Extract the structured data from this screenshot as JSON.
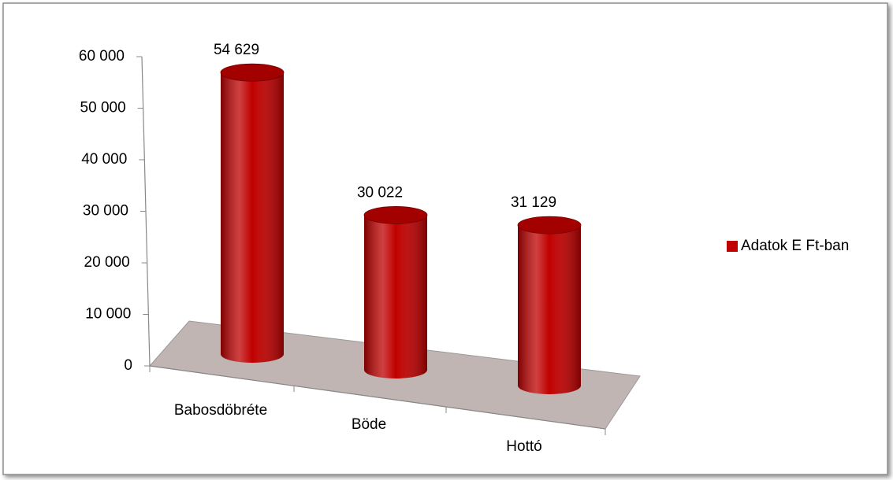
{
  "chart_data": {
    "type": "bar",
    "categories": [
      "Babosdöbréte",
      "Böde",
      "Hottó"
    ],
    "series": [
      {
        "name": "Adatok E Ft-ban",
        "color": "#c00000",
        "values": [
          54629,
          30022,
          31129
        ],
        "value_labels": [
          "54 629",
          "30 022",
          "31 129"
        ]
      }
    ],
    "ylim": [
      0,
      60000
    ],
    "yticks": [
      0,
      {
        "value": 10000,
        "label": "10 000"
      },
      {
        "value": 20000,
        "label": "20 000"
      },
      {
        "value": 30000,
        "label": "30 000"
      },
      {
        "value": 40000,
        "label": "40 000"
      },
      {
        "value": 50000,
        "label": "50 000"
      },
      {
        "value": 60000,
        "label": "60 000"
      }
    ],
    "legend": "right",
    "grid": false
  }
}
